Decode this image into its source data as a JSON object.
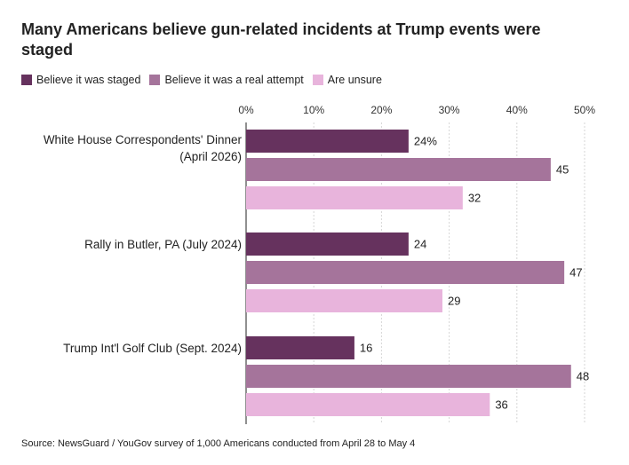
{
  "chart_data": {
    "type": "bar",
    "orientation": "horizontal",
    "title": "Many Americans believe gun-related incidents at Trump events were staged",
    "categories": [
      [
        "White House Correspondents' Dinner",
        "(April 2026)"
      ],
      [
        "Rally in Butler, PA (July 2024)"
      ],
      [
        "Trump Int'l Golf Club (Sept. 2024)"
      ]
    ],
    "series": [
      {
        "name": "Believe it was staged",
        "color": "#66325e",
        "values": [
          24,
          24,
          16
        ],
        "labels": [
          "24%",
          "24",
          "16"
        ]
      },
      {
        "name": "Believe it was a real attempt",
        "color": "#a5749b",
        "values": [
          45,
          47,
          48
        ],
        "labels": [
          "45",
          "47",
          "48"
        ]
      },
      {
        "name": "Are unsure",
        "color": "#e8b4dc",
        "values": [
          32,
          29,
          36
        ],
        "labels": [
          "32",
          "29",
          "36"
        ]
      }
    ],
    "xticks": [
      0,
      10,
      20,
      30,
      40,
      50
    ],
    "xtick_labels": [
      "0%",
      "10%",
      "20%",
      "30%",
      "40%",
      "50%"
    ],
    "xlim": [
      0,
      50
    ],
    "grid": true,
    "legend_position": "top-left",
    "source": "Source: NewsGuard / YouGov survey of 1,000 Americans conducted from April 28 to May 4"
  }
}
